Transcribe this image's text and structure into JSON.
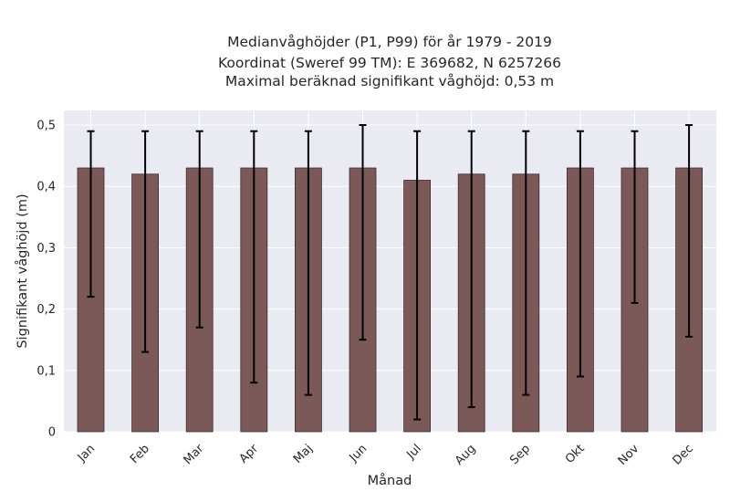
{
  "chart_data": {
    "type": "bar",
    "title_lines": [
      "Medianvåghöjder (P1, P99) för år 1979 - 2019",
      "Koordinat (Sweref 99 TM): E 369682, N 6257266",
      "Maximal beräknad signifikant våghöjd: 0,53 m"
    ],
    "xlabel": "Månad",
    "ylabel": "Signifikant våghöjd (m)",
    "categories": [
      "Jan",
      "Feb",
      "Mar",
      "Apr",
      "Maj",
      "Jun",
      "Jul",
      "Aug",
      "Sep",
      "Okt",
      "Nov",
      "Dec"
    ],
    "series": [
      {
        "values": [
          0.43,
          0.42,
          0.43,
          0.43,
          0.43,
          0.43,
          0.41,
          0.42,
          0.42,
          0.43,
          0.43,
          0.43
        ],
        "error_low": [
          0.22,
          0.13,
          0.17,
          0.08,
          0.06,
          0.15,
          0.02,
          0.04,
          0.06,
          0.09,
          0.21,
          0.155
        ],
        "error_high": [
          0.49,
          0.49,
          0.49,
          0.49,
          0.49,
          0.5,
          0.49,
          0.49,
          0.49,
          0.49,
          0.49,
          0.5
        ]
      }
    ],
    "ylim": [
      0,
      0.5
    ],
    "yticks": [
      0,
      0.1,
      0.2,
      0.3,
      0.4,
      0.5
    ],
    "ytick_labels": [
      "0",
      "0,1",
      "0,2",
      "0,3",
      "0,4",
      "0,5"
    ],
    "grid": true,
    "colors": {
      "bar": "#7b5959",
      "bar_edge": "#3b2c2c",
      "error_bar": "#000000",
      "plot_background": "#eaeaf2",
      "grid": "#ffffff"
    }
  }
}
